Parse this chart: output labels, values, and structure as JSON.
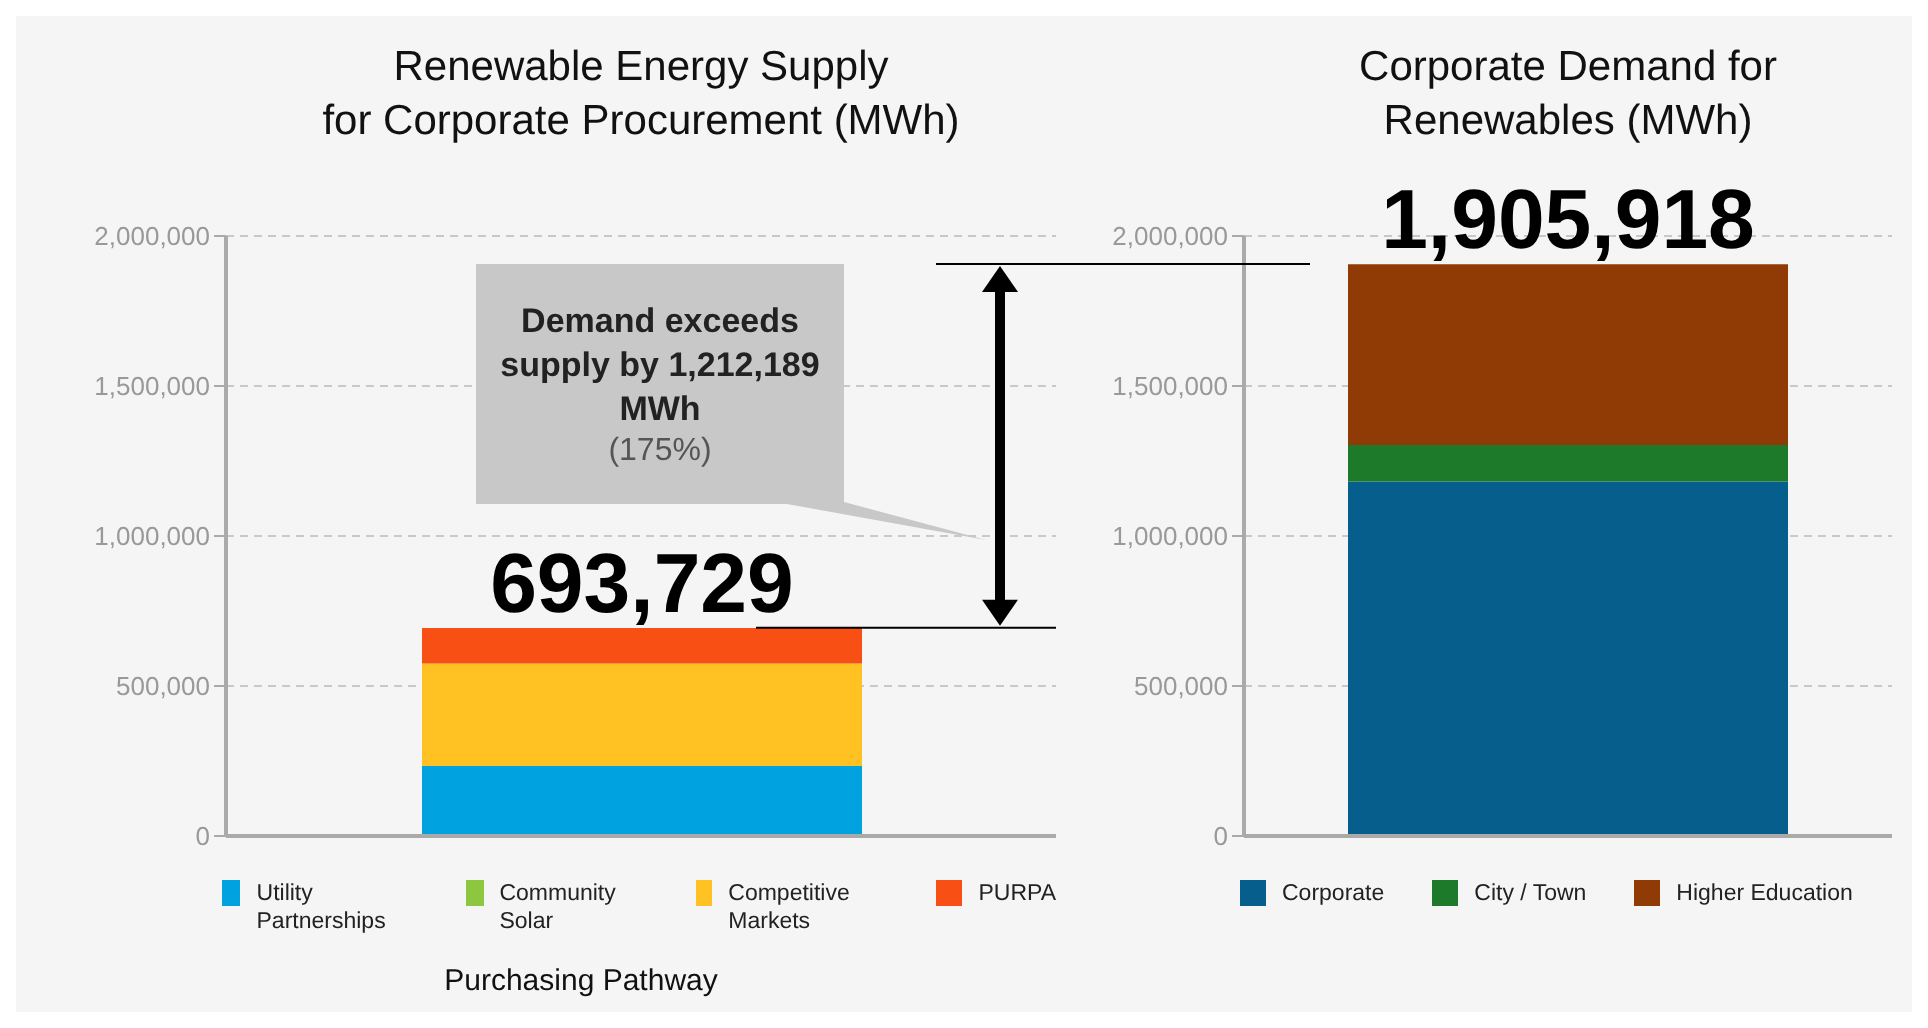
{
  "chart_data": [
    {
      "type": "bar",
      "title": "Renewable Energy Supply\nfor Corporate Procurement (MWh)",
      "xlabel": "Purchasing Pathway",
      "categories": [
        null
      ],
      "stacked": true,
      "ylim": [
        0,
        2000000
      ],
      "yticks": [
        {
          "value": 0,
          "label": "0"
        },
        {
          "value": 500000,
          "label": "500,000"
        },
        {
          "value": 1000000,
          "label": "1,000,000"
        },
        {
          "value": 1500000,
          "label": "1,500,000"
        },
        {
          "value": 2000000,
          "label": "2,000,000"
        }
      ],
      "grid": "y",
      "legend": "bottom",
      "totals": [
        "693,729"
      ],
      "series": [
        {
          "name": "Utility Partnerships",
          "color": "#00a3e0",
          "values": [
            233000
          ]
        },
        {
          "name": "Community Solar",
          "color": "#8dc63f",
          "values": [
            0
          ]
        },
        {
          "name": "Competitive Markets",
          "color": "#ffc222",
          "values": [
            342000
          ]
        },
        {
          "name": "PURPA",
          "color": "#f85014",
          "values": [
            118729
          ]
        }
      ],
      "annotations": [
        "Demand exceeds supply by 1,212,189 MWh",
        "(175%)"
      ]
    },
    {
      "type": "bar",
      "title": "Corporate Demand for\nRenewables (MWh)",
      "categories": [
        null
      ],
      "stacked": true,
      "ylim": [
        0,
        2000000
      ],
      "yticks": [
        {
          "value": 0,
          "label": "0"
        },
        {
          "value": 500000,
          "label": "500,000"
        },
        {
          "value": 1000000,
          "label": "1,000,000"
        },
        {
          "value": 1500000,
          "label": "1,500,000"
        },
        {
          "value": 2000000,
          "label": "2,000,000"
        }
      ],
      "grid": "y",
      "legend": "bottom",
      "totals": [
        "1,905,918"
      ],
      "series": [
        {
          "name": "Corporate",
          "color": "#055e8c",
          "values": [
            1182000
          ]
        },
        {
          "name": "City / Town",
          "color": "#1e7a2b",
          "values": [
            121000
          ]
        },
        {
          "name": "Higher Education",
          "color": "#903b06",
          "values": [
            602918
          ]
        }
      ]
    }
  ]
}
